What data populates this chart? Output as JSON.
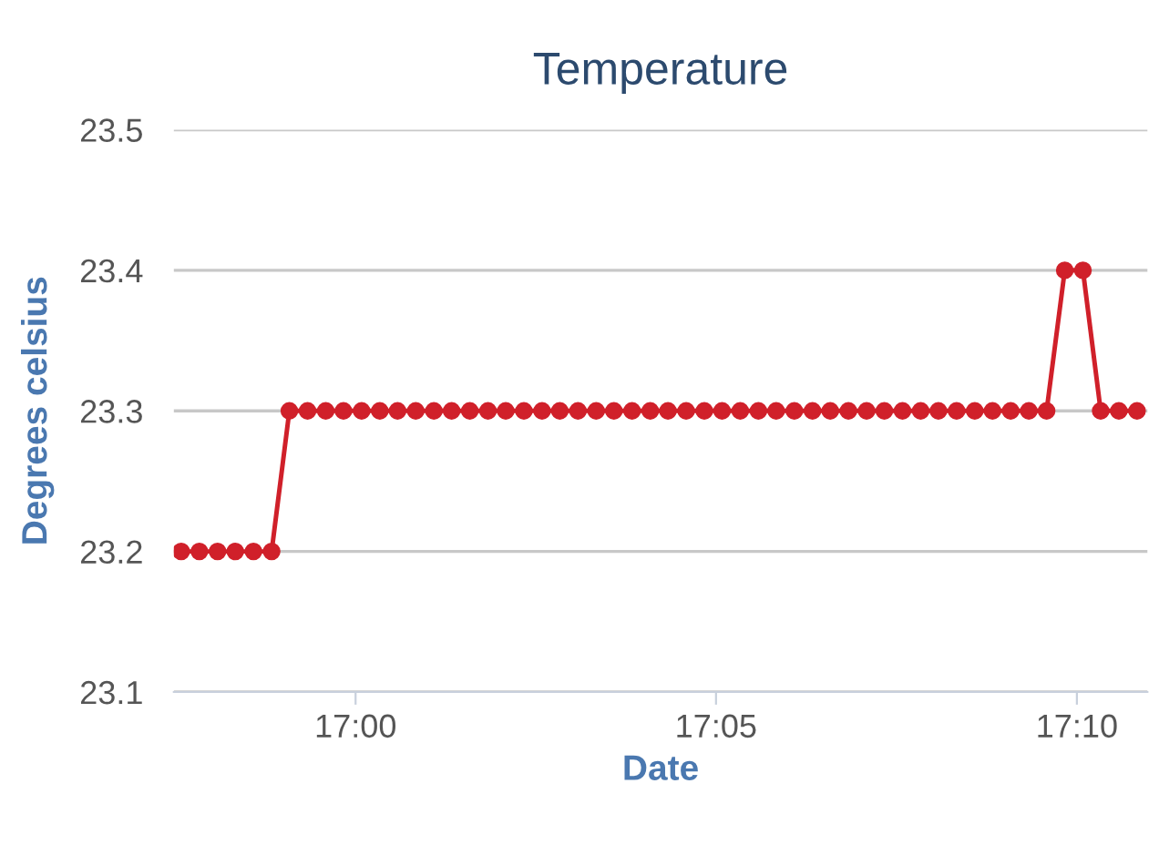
{
  "chart_data": {
    "type": "line",
    "title": "Temperature",
    "xlabel": "Date",
    "ylabel": "Degrees celsius",
    "x": [
      16.9597,
      16.9639,
      16.9681,
      16.9722,
      16.9764,
      16.9806,
      16.9847,
      16.9889,
      16.9931,
      16.9972,
      17.0014,
      17.0056,
      17.0097,
      17.0139,
      17.0181,
      17.0222,
      17.0264,
      17.0306,
      17.0347,
      17.0389,
      17.0431,
      17.0472,
      17.0514,
      17.0556,
      17.0597,
      17.0639,
      17.0681,
      17.0722,
      17.0764,
      17.0806,
      17.0847,
      17.0889,
      17.0931,
      17.0972,
      17.1014,
      17.1056,
      17.1097,
      17.1139,
      17.1181,
      17.1222,
      17.1264,
      17.1306,
      17.1347,
      17.1389,
      17.1431,
      17.1472,
      17.1514,
      17.1556,
      17.1597,
      17.1639,
      17.1681,
      17.1722,
      17.1764,
      17.1806
    ],
    "series": [
      {
        "color": "#d0202a",
        "values": [
          23.2,
          23.2,
          23.2,
          23.2,
          23.2,
          23.2,
          23.3,
          23.3,
          23.3,
          23.3,
          23.3,
          23.3,
          23.3,
          23.3,
          23.3,
          23.3,
          23.3,
          23.3,
          23.3,
          23.3,
          23.3,
          23.3,
          23.3,
          23.3,
          23.3,
          23.3,
          23.3,
          23.3,
          23.3,
          23.3,
          23.3,
          23.3,
          23.3,
          23.3,
          23.3,
          23.3,
          23.3,
          23.3,
          23.3,
          23.3,
          23.3,
          23.3,
          23.3,
          23.3,
          23.3,
          23.3,
          23.3,
          23.3,
          23.3,
          23.4,
          23.4,
          23.3,
          23.3,
          23.3
        ]
      }
    ],
    "xlim": [
      16.958,
      17.183
    ],
    "xticks": [
      {
        "value": 17.0,
        "label": "17:00"
      },
      {
        "value": 17.0833,
        "label": "17:05"
      },
      {
        "value": 17.1667,
        "label": "17:10"
      }
    ],
    "ylim": [
      23.1,
      23.5
    ],
    "yticks": [
      23.1,
      23.2,
      23.3,
      23.4,
      23.5
    ],
    "grid": "y",
    "marker": "circle",
    "line_style": "solid"
  }
}
